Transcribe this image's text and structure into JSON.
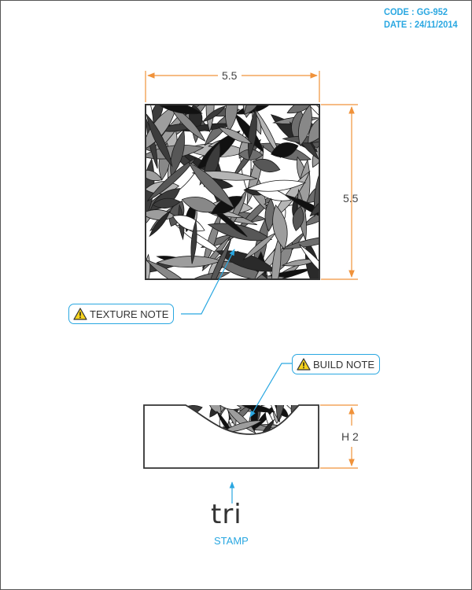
{
  "header": {
    "code": "CODE : GG-952",
    "date": "DATE : 24/11/2014"
  },
  "top_view": {
    "width_label": "5.5",
    "height_label": "5.5",
    "texture": "leaf-pattern"
  },
  "callouts": {
    "texture_note": "TEXTURE NOTE",
    "build_note": "BUILD NOTE",
    "icon": "warning-triangle-icon"
  },
  "side_view": {
    "height_label": "H 2"
  },
  "stamp": {
    "logo_text": "tri",
    "label": "STAMP"
  },
  "colors": {
    "accent_blue": "#29a7e1",
    "dimension_orange": "#f0923a",
    "outline": "#333333"
  }
}
